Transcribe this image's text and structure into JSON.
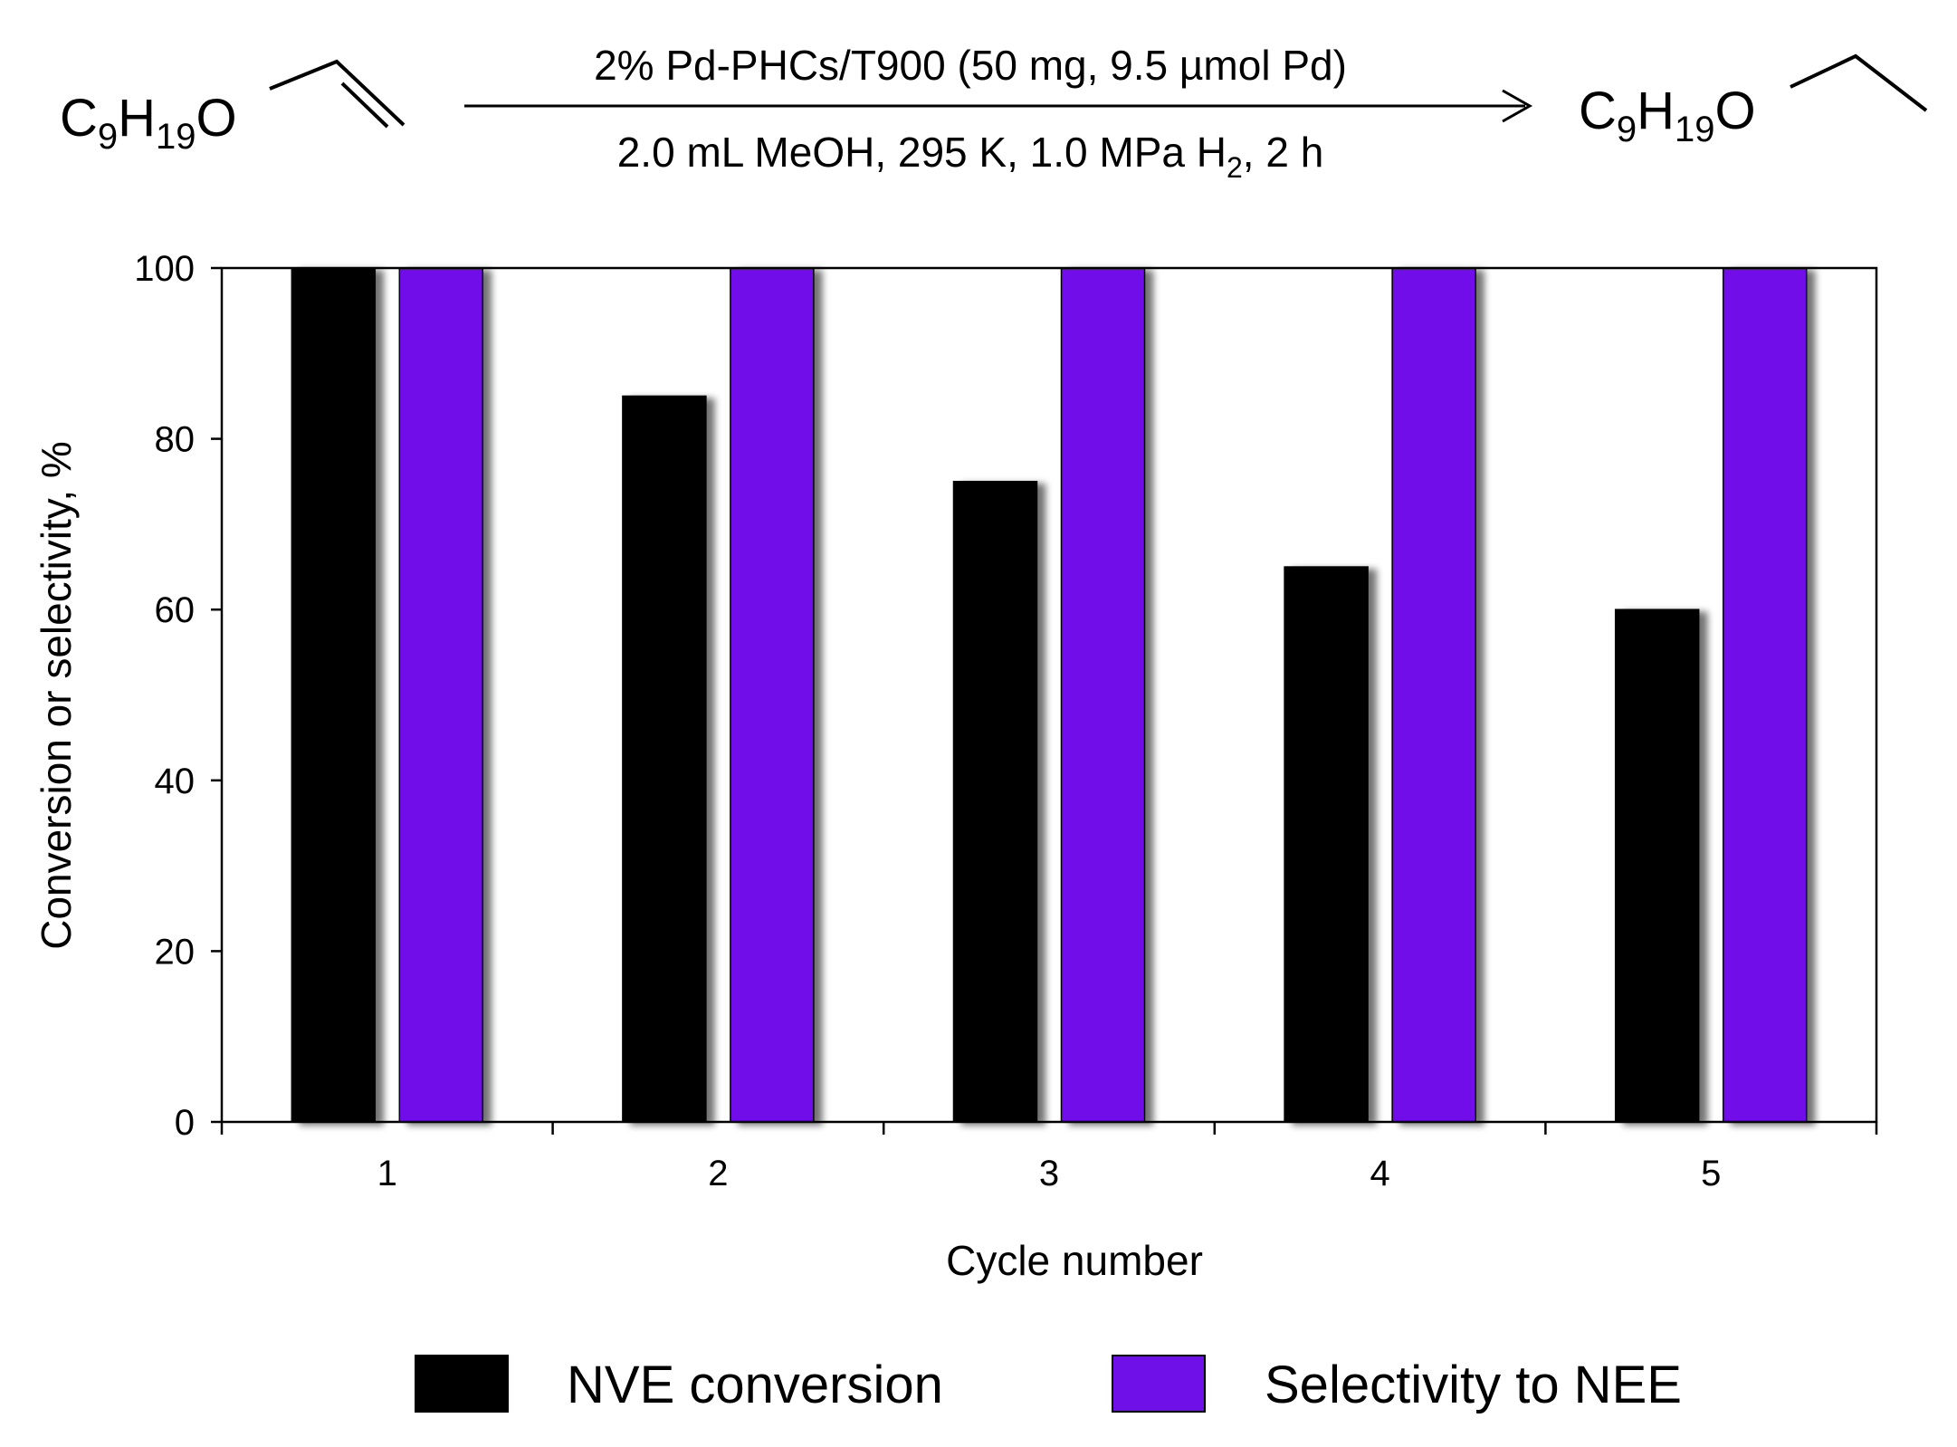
{
  "scheme": {
    "reactant_prefix": "C",
    "reactant_c_sub": "9",
    "reactant_h": "H",
    "reactant_h_sub": "19",
    "reactant_o": "O",
    "product_prefix": "C",
    "product_c_sub": "9",
    "product_h": "H",
    "product_h_sub": "19",
    "product_o": "O",
    "condition_top": "2% Pd-PHCs/T900 (50 mg, 9.5 µmol Pd)",
    "condition_bottom_main": "2.0 mL MeOH, 295 K, 1.0 MPa H",
    "condition_bottom_sub": "2",
    "condition_bottom_tail": ", 2 h"
  },
  "chart_data": {
    "type": "bar",
    "categories": [
      "1",
      "2",
      "3",
      "4",
      "5"
    ],
    "series": [
      {
        "name": "NVE conversion",
        "values": [
          100,
          85,
          75,
          65,
          60
        ],
        "color": "#000000"
      },
      {
        "name": "Selectivity to NEE",
        "values": [
          100,
          100,
          100,
          100,
          100
        ],
        "color": "#7010e8"
      }
    ],
    "xlabel": "Cycle number",
    "ylabel": "Conversion or selectivity, %",
    "ylim": [
      0,
      100
    ],
    "yticks": [
      "0",
      "20",
      "40",
      "60",
      "80",
      "100"
    ],
    "grid": false,
    "legend": "bottom"
  }
}
